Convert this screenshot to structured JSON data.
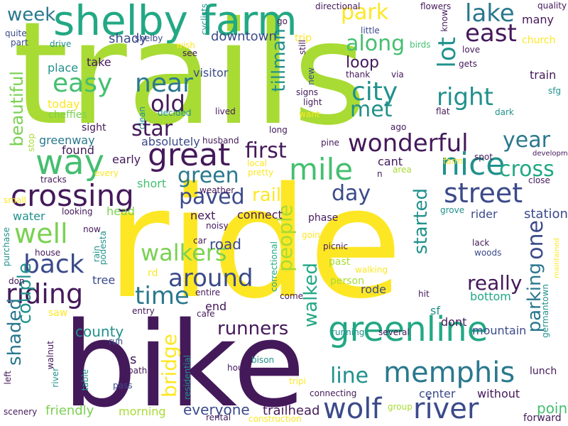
{
  "palette": {
    "background": "#ffffff",
    "purple": "#44195a",
    "indigo": "#3b4a8a",
    "blue": "#33608d",
    "steel": "#2a788e",
    "teal": "#21918c",
    "green": "#22a884",
    "sea": "#44bf70",
    "lime": "#7ad151",
    "chartreuse": "#a8db34",
    "yellow": "#fde725"
  },
  "words": [
    {
      "t": "trails",
      "c": "chartreuse"
    },
    {
      "t": "ride",
      "c": "yellow"
    },
    {
      "t": "bike",
      "c": "purple"
    },
    {
      "t": "shelby farm",
      "c": "green"
    },
    {
      "t": "greenline",
      "c": "green"
    },
    {
      "t": "memphis",
      "c": "steel"
    },
    {
      "t": "way",
      "c": "sea"
    },
    {
      "t": "great",
      "c": "purple"
    },
    {
      "t": "mile",
      "c": "sea"
    },
    {
      "t": "nice",
      "c": "teal"
    },
    {
      "t": "crossing",
      "c": "purple"
    },
    {
      "t": "riding",
      "c": "purple"
    },
    {
      "t": "wolf",
      "c": "indigo"
    },
    {
      "t": "river",
      "c": "indigo"
    },
    {
      "t": "street",
      "c": "indigo"
    },
    {
      "t": "wonderful",
      "c": "purple"
    },
    {
      "t": "city",
      "c": "teal"
    },
    {
      "t": "along",
      "c": "sea"
    },
    {
      "t": "lake",
      "c": "steel"
    },
    {
      "t": "east",
      "c": "purple"
    },
    {
      "t": "park",
      "c": "yellow"
    },
    {
      "t": "lot",
      "c": "teal"
    },
    {
      "t": "right",
      "c": "teal"
    },
    {
      "t": "easy",
      "c": "sea"
    },
    {
      "t": "near",
      "c": "steel"
    },
    {
      "t": "old",
      "c": "purple"
    },
    {
      "t": "star",
      "c": "purple"
    },
    {
      "t": "first",
      "c": "purple"
    },
    {
      "t": "met",
      "c": "teal"
    },
    {
      "t": "back",
      "c": "indigo"
    },
    {
      "t": "well",
      "c": "lime"
    },
    {
      "t": "around",
      "c": "indigo"
    },
    {
      "t": "walkers",
      "c": "lime"
    },
    {
      "t": "time",
      "c": "steel"
    },
    {
      "t": "runners",
      "c": "purple"
    },
    {
      "t": "paved",
      "c": "indigo"
    },
    {
      "t": "green",
      "c": "steel"
    },
    {
      "t": "cross",
      "c": "green"
    },
    {
      "t": "year",
      "c": "steel"
    },
    {
      "t": "day",
      "c": "indigo"
    },
    {
      "t": "line",
      "c": "teal"
    },
    {
      "t": "really",
      "c": "purple"
    },
    {
      "t": "people",
      "c": "chartreuse"
    },
    {
      "t": "started",
      "c": "teal"
    },
    {
      "t": "one",
      "c": "indigo"
    },
    {
      "t": "parking",
      "c": "steel"
    },
    {
      "t": "tillman",
      "c": "teal"
    },
    {
      "t": "beautiful",
      "c": "lime"
    },
    {
      "t": "couple",
      "c": "teal"
    },
    {
      "t": "shaded",
      "c": "steel"
    },
    {
      "t": "bridge",
      "c": "yellow"
    },
    {
      "t": "walked",
      "c": "green"
    },
    {
      "t": "week",
      "c": "steel"
    },
    {
      "t": "loop",
      "c": "purple"
    },
    {
      "t": "rail",
      "c": "yellow"
    },
    {
      "t": "station",
      "c": "indigo"
    },
    {
      "t": "mountain",
      "c": "indigo"
    },
    {
      "t": "county",
      "c": "teal"
    },
    {
      "t": "point",
      "c": "sea"
    },
    {
      "t": "everyone",
      "c": "indigo"
    },
    {
      "t": "friendly",
      "c": "lime"
    },
    {
      "t": "trailhead",
      "c": "purple"
    },
    {
      "t": "morning",
      "c": "chartreuse"
    },
    {
      "t": "road",
      "c": "indigo"
    },
    {
      "t": "downtown",
      "c": "indigo"
    },
    {
      "t": "shady",
      "c": "indigo"
    },
    {
      "t": "take",
      "c": "purple"
    },
    {
      "t": "place",
      "c": "teal"
    },
    {
      "t": "visitor",
      "c": "indigo"
    },
    {
      "t": "greenway",
      "c": "steel"
    },
    {
      "t": "found",
      "c": "purple"
    },
    {
      "t": "early",
      "c": "purple"
    },
    {
      "t": "head",
      "c": "lime"
    },
    {
      "t": "water",
      "c": "teal"
    },
    {
      "t": "tree",
      "c": "indigo"
    },
    {
      "t": "rode",
      "c": "indigo"
    },
    {
      "t": "cant",
      "c": "purple"
    },
    {
      "t": "train",
      "c": "purple"
    },
    {
      "t": "dont",
      "c": "purple"
    },
    {
      "t": "bottom",
      "c": "green"
    },
    {
      "t": "sf",
      "c": "teal"
    },
    {
      "t": "rider",
      "c": "indigo"
    },
    {
      "t": "lunch",
      "c": "purple"
    },
    {
      "t": "center",
      "c": "indigo"
    },
    {
      "t": "without",
      "c": "purple"
    },
    {
      "t": "forward",
      "c": "purple"
    },
    {
      "t": "connect",
      "c": "purple"
    },
    {
      "t": "next",
      "c": "purple"
    },
    {
      "t": "end",
      "c": "purple"
    },
    {
      "t": "absolutely",
      "c": "indigo"
    },
    {
      "t": "short",
      "c": "sea"
    },
    {
      "t": "today",
      "c": "yellow"
    },
    {
      "t": "cheffies",
      "c": "lime"
    },
    {
      "t": "sight",
      "c": "purple"
    },
    {
      "t": "many",
      "c": "purple"
    },
    {
      "t": "church",
      "c": "yellow"
    },
    {
      "t": "quality",
      "c": "purple"
    },
    {
      "t": "flowers",
      "c": "purple"
    },
    {
      "t": "directional",
      "c": "purple"
    },
    {
      "t": "trip",
      "c": "yellow"
    },
    {
      "t": "little",
      "c": "indigo"
    },
    {
      "t": "go",
      "c": "purple"
    },
    {
      "t": "cyclists",
      "c": "teal"
    },
    {
      "t": "see",
      "c": "purple"
    },
    {
      "t": "wish",
      "c": "yellow"
    },
    {
      "t": "shelby",
      "c": "indigo"
    },
    {
      "t": "quite",
      "c": "indigo"
    },
    {
      "t": "part",
      "c": "indigo"
    },
    {
      "t": "drive",
      "c": "teal"
    },
    {
      "t": "still",
      "c": "purple"
    },
    {
      "t": "birds",
      "c": "sea"
    },
    {
      "t": "via",
      "c": "purple"
    },
    {
      "t": "thank",
      "c": "purple"
    },
    {
      "t": "new",
      "c": "indigo"
    },
    {
      "t": "signs",
      "c": "purple"
    },
    {
      "t": "light",
      "c": "purple"
    },
    {
      "t": "want",
      "c": "yellow"
    },
    {
      "t": "flat",
      "c": "purple"
    },
    {
      "t": "know",
      "c": "purple"
    },
    {
      "t": "love",
      "c": "purple"
    },
    {
      "t": "gets",
      "c": "purple"
    },
    {
      "t": "sfg",
      "c": "teal"
    },
    {
      "t": "dark",
      "c": "teal"
    },
    {
      "t": "development",
      "c": "purple"
    },
    {
      "t": "spot",
      "c": "purple"
    },
    {
      "t": "clean",
      "c": "teal"
    },
    {
      "t": "decided",
      "c": "teal"
    },
    {
      "t": "lived",
      "c": "purple"
    },
    {
      "t": "long",
      "c": "purple"
    },
    {
      "t": "ago",
      "c": "purple"
    },
    {
      "t": "husband",
      "c": "purple"
    },
    {
      "t": "pine",
      "c": "purple"
    },
    {
      "t": "local",
      "c": "yellow"
    },
    {
      "t": "pretty",
      "c": "yellow"
    },
    {
      "t": "area",
      "c": "chartreuse"
    },
    {
      "t": "n",
      "c": "purple"
    },
    {
      "t": "farm",
      "c": "yellow"
    },
    {
      "t": "close",
      "c": "purple"
    },
    {
      "t": "weather",
      "c": "purple"
    },
    {
      "t": "tracks",
      "c": "purple"
    },
    {
      "t": "every",
      "c": "yellow"
    },
    {
      "t": "stop",
      "c": "chartreuse"
    },
    {
      "t": "small",
      "c": "yellow"
    },
    {
      "t": "looking",
      "c": "purple"
    },
    {
      "t": "noisy",
      "c": "purple"
    },
    {
      "t": "phase",
      "c": "purple"
    },
    {
      "t": "grove",
      "c": "teal"
    },
    {
      "t": "now",
      "c": "purple"
    },
    {
      "t": "podesta",
      "c": "teal"
    },
    {
      "t": "rain",
      "c": "teal"
    },
    {
      "t": "car",
      "c": "purple"
    },
    {
      "t": "rd",
      "c": "yellow"
    },
    {
      "t": "entire",
      "c": "purple"
    },
    {
      "t": "cafe",
      "c": "purple"
    },
    {
      "t": "entry",
      "c": "purple"
    },
    {
      "t": "correctional",
      "c": "green"
    },
    {
      "t": "past",
      "c": "chartreuse"
    },
    {
      "t": "walking",
      "c": "yellow"
    },
    {
      "t": "person",
      "c": "chartreuse"
    },
    {
      "t": "come",
      "c": "purple"
    },
    {
      "t": "hit",
      "c": "purple"
    },
    {
      "t": "picnic",
      "c": "purple"
    },
    {
      "t": "going",
      "c": "yellow"
    },
    {
      "t": "lack",
      "c": "purple"
    },
    {
      "t": "woods",
      "c": "indigo"
    },
    {
      "t": "maintained",
      "c": "yellow"
    },
    {
      "t": "germantown",
      "c": "teal"
    },
    {
      "t": "house",
      "c": "purple"
    },
    {
      "t": "purchase",
      "c": "teal"
    },
    {
      "t": "saw",
      "c": "yellow"
    },
    {
      "t": "don",
      "c": "purple"
    },
    {
      "t": "walnut",
      "c": "purple"
    },
    {
      "t": "run",
      "c": "indigo"
    },
    {
      "t": "bison",
      "c": "teal"
    },
    {
      "t": "path",
      "c": "purple"
    },
    {
      "t": "table",
      "c": "teal"
    },
    {
      "t": "pass",
      "c": "indigo"
    },
    {
      "t": "residential",
      "c": "teal"
    },
    {
      "t": "hours",
      "c": "purple"
    },
    {
      "t": "tripi",
      "c": "yellow"
    },
    {
      "t": "running",
      "c": "teal"
    },
    {
      "t": "several",
      "c": "purple"
    },
    {
      "t": "connecting",
      "c": "purple"
    },
    {
      "t": "group",
      "c": "chartreuse"
    },
    {
      "t": "rental",
      "c": "purple"
    },
    {
      "t": "construction",
      "c": "yellow"
    },
    {
      "t": "river",
      "c": "teal"
    },
    {
      "t": "left",
      "c": "purple"
    },
    {
      "t": "scenery",
      "c": "purple"
    },
    {
      "t": "s",
      "c": "purple"
    }
  ]
}
